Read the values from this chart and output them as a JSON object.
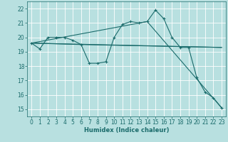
{
  "xlabel": "Humidex (Indice chaleur)",
  "background_color": "#b8e0e0",
  "grid_color": "#ffffff",
  "line_color": "#1a6b6b",
  "xlim": [
    -0.5,
    23.5
  ],
  "ylim": [
    14.5,
    22.5
  ],
  "xticks": [
    0,
    1,
    2,
    3,
    4,
    5,
    6,
    7,
    8,
    9,
    10,
    11,
    12,
    13,
    14,
    15,
    16,
    17,
    18,
    19,
    20,
    21,
    22,
    23
  ],
  "yticks": [
    15,
    16,
    17,
    18,
    19,
    20,
    21,
    22
  ],
  "series1_x": [
    0,
    1,
    2,
    3,
    4,
    5,
    6,
    7,
    8,
    9,
    10,
    11,
    12,
    13,
    14,
    15,
    16,
    17,
    18,
    19,
    20,
    21,
    22,
    23
  ],
  "series1_y": [
    19.6,
    19.2,
    20.0,
    20.0,
    20.0,
    19.8,
    19.5,
    18.2,
    18.2,
    18.3,
    20.0,
    20.9,
    21.1,
    21.0,
    21.1,
    21.9,
    21.3,
    20.0,
    19.3,
    19.3,
    17.2,
    16.2,
    15.8,
    15.1
  ],
  "series2_x": [
    0,
    6,
    23
  ],
  "series2_y": [
    19.6,
    19.5,
    19.3
  ],
  "series3_x": [
    0,
    14,
    23
  ],
  "series3_y": [
    19.6,
    21.1,
    15.1
  ],
  "series4_x": [
    0,
    23
  ],
  "series4_y": [
    19.6,
    19.3
  ],
  "xlabel_fontsize": 6.0,
  "tick_fontsize": 5.5,
  "lw": 0.8,
  "marker_size": 3.5
}
